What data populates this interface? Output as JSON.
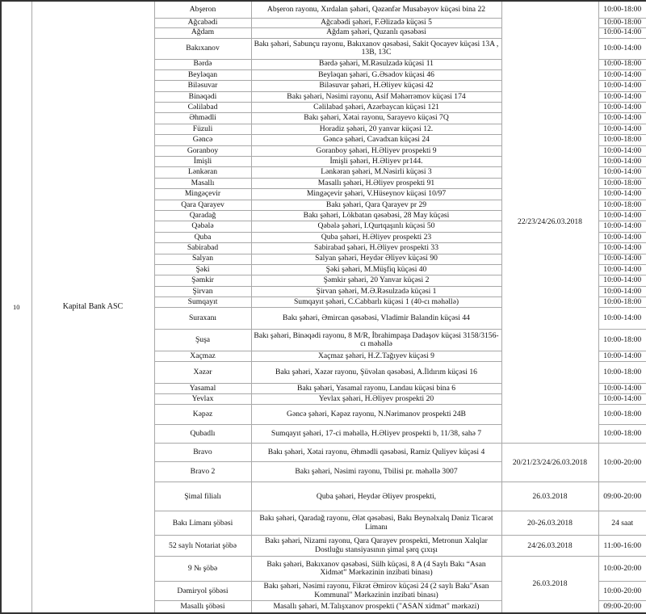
{
  "row_number": "10",
  "bank": "Kapital Bank ASC",
  "rows": [
    {
      "branch": "Abşeron",
      "address": "Abşeron rayonu, Xırdalan şəhəri, Qəzənfər Musabəyov küçəsi bina 22",
      "date_group": 0,
      "hours": "10:00-18:00"
    },
    {
      "branch": "Ağcabədi",
      "address": "Ağcabədi şəhəri, F.Əlizadə küçəsi 5",
      "date_group": 0,
      "hours": "10:00-18:00"
    },
    {
      "branch": "Ağdam",
      "address": "Ağdam şəhəri, Quzanlı qəsəbəsi",
      "date_group": 0,
      "hours": "10:00-14:00"
    },
    {
      "branch": "Bakıxanov",
      "address": "Bakı şəhəri,  Sabunçu rayonu, Bakıxanov qəsəbəsi, Sakit Qocayev küçəsi 13A , 13B, 13C",
      "date_group": 0,
      "hours": "10:00-14:00"
    },
    {
      "branch": "Bərdə",
      "address": "Bərdə şəhəri, M.Rəsulzadə küçəsi 11",
      "date_group": 0,
      "hours": "10:00-18:00"
    },
    {
      "branch": "Beyləqan",
      "address": "Beyləqan şəhəri, G.Əsədov küçəsi 46",
      "date_group": 0,
      "hours": "10:00-14:00"
    },
    {
      "branch": "Biləsuvar",
      "address": "Biləsuvar şəhəri, H.Əliyev küçəsi 42",
      "date_group": 0,
      "hours": "10:00-14:00"
    },
    {
      "branch": "Binəqədi",
      "address": "Bakı şəhəri, Nəsimi rayonu, Asif Məhərrəmov küçəsi 174",
      "date_group": 0,
      "hours": "10:00-14:00"
    },
    {
      "branch": "Cəlilabad",
      "address": "Cəlilabad şəhəri, Azərbaycan küçəsi 121",
      "date_group": 0,
      "hours": "10:00-14:00"
    },
    {
      "branch": "Əhmədli",
      "address": "Bakı şəhəri, Xətai rayonu, Sarayevo küçəsi 7Q",
      "date_group": 0,
      "hours": "10:00-14:00"
    },
    {
      "branch": "Füzuli",
      "address": "Horadiz şəhəri, 20 yanvar küçəsi 12.",
      "date_group": 0,
      "hours": "10:00-14:00"
    },
    {
      "branch": "Gəncə",
      "address": "Gəncə şəhəri,  Cavadxan küçəsi 24",
      "date_group": 0,
      "hours": "10:00-18:00"
    },
    {
      "branch": "Goranboy",
      "address": "Goranboy şəhəri, H.Əliyev prospekti 9",
      "date_group": 0,
      "hours": "10:00-14:00"
    },
    {
      "branch": "İmişli",
      "address": "İmişli şəhəri, H.Əliyev pr144.",
      "date_group": 0,
      "hours": "10:00-14:00"
    },
    {
      "branch": "Lənkəran",
      "address": "Lənkəran şəhəri, M.Nəsirli küçəsi 3",
      "date_group": 0,
      "hours": "10:00-14:00"
    },
    {
      "branch": "Masallı",
      "address": "Masallı şəhəri,  H.Əliyev prospekti 91",
      "date_group": 0,
      "hours": "10:00-18:00"
    },
    {
      "branch": "Mingəçevir",
      "address": "Mingəçevir şəhəri, V.Hüseynov küçəsi 10/97",
      "date_group": 0,
      "hours": "10:00-14:00"
    },
    {
      "branch": "Qara Qarayev",
      "address": "Bakı şəhəri, Qara Qarayev pr 29",
      "date_group": 0,
      "hours": "10:00-18:00"
    },
    {
      "branch": "Qaradağ",
      "address": "Bakı şəhəri, Lökbatan qəsəbəsi, 28 May küçəsi",
      "date_group": 0,
      "hours": "10:00-14:00"
    },
    {
      "branch": "Qəbələ",
      "address": "Qəbələ şəhəri, I.Qurtqaşınlı küçəsi 50",
      "date_group": 0,
      "hours": "10:00-14:00"
    },
    {
      "branch": "Quba",
      "address": "Quba şəhəri, H.Əliyev prospekti 23",
      "date_group": 0,
      "hours": "10:00-14:00"
    },
    {
      "branch": "Sabirabad",
      "address": "Sabirabad şəhəri, H.Əliyev prospekti 33",
      "date_group": 0,
      "hours": "10:00-14:00"
    },
    {
      "branch": "Salyan",
      "address": "Salyan şəhəri,  Heydər Əliyev küçəsi 90",
      "date_group": 0,
      "hours": "10:00-14:00"
    },
    {
      "branch": "Şəki",
      "address": "Şəki şəhəri, M.Müşfiq küçəsi 40",
      "date_group": 0,
      "hours": "10:00-14:00"
    },
    {
      "branch": "Şəmkir",
      "address": "Şəmkir şəhəri, 20 Yanvar küçəsi 2",
      "date_group": 0,
      "hours": "10:00-14:00"
    },
    {
      "branch": "Şirvan",
      "address": "Şirvan şəhəri,  M.Ə.Rəsulzadə küçəsi 1",
      "date_group": 0,
      "hours": "10:00-14:00"
    },
    {
      "branch": "Sumqayıt",
      "address": "Sumqayıt şəhəri,  C.Cabbarlı küçəsi 1 (40-cı məhəllə)",
      "date_group": 0,
      "hours": "10:00-18:00"
    },
    {
      "branch": "Suraxanı",
      "address": "Bakı şəhəri, Əmircan qəsəbəsi, Vladimir Balandin küçəsi 44",
      "date_group": 0,
      "hours": "10:00-14:00"
    },
    {
      "branch": "Şuşa",
      "address": "Bakı şəhəri, Binəqədi rayonu, 8 M/R, İbrahimpaşa Dadaşov küçəsi 3158/3156-cı məhəllə",
      "date_group": 0,
      "hours": "10:00-18:00"
    },
    {
      "branch": "Xaçmaz",
      "address": "Xaçmaz şəhəri,  H.Z.Tağıyev küçəsi 9",
      "date_group": 0,
      "hours": "10:00-14:00"
    },
    {
      "branch": "Xəzər",
      "address": "Bakı şəhəri, Xəzər rayonu, Şüvəlan qəsəbəsi, A.İldırım küçəsi 16",
      "date_group": 0,
      "hours": "10:00-18:00"
    },
    {
      "branch": "Yasamal",
      "address": "Bakı şəhəri, Yasamal rayonu, Landau küçəsi bina 6",
      "date_group": 0,
      "hours": "10:00-14:00"
    },
    {
      "branch": "Yevlax",
      "address": "Yevlax şəhəri, H.Əliyev prospekti 20",
      "date_group": 0,
      "hours": "10:00-14:00"
    },
    {
      "branch": "Kəpəz",
      "address": "Gəncə şəhəri, Kəpəz rayonu, N.Nərimanov prospekti 24B",
      "date_group": 0,
      "hours": "10:00-18:00"
    },
    {
      "branch": "Qubadlı",
      "address": "Sumqayıt şəhəri,  17-ci məhəllə, H.Əliyev prospekti b, 11/38, sahə 7",
      "date_group": 0,
      "hours": "10:00-18:00"
    },
    {
      "branch": "Bravo",
      "address": "Bakı şəhəri, Xətai rayonu, Əhmədli qəsəbəsi, Ramiz Quliyev küçəsi 4",
      "date_group": 1,
      "hours": "10:00-20:00",
      "hours_span": 2
    },
    {
      "branch": "Bravo 2",
      "address": "Bakı şəhəri, Nəsimi rayonu, Tbilisi pr. məhəllə 3007",
      "date_group": 1,
      "hours": null
    },
    {
      "branch": "Şimal filialı",
      "address": "Quba şəhəri, Heydər Əliyev prospekti,",
      "date_group": 2,
      "hours": "09:00-20:00"
    },
    {
      "branch": "Bakı Limanı şöbəsi",
      "address": "Bakı şəhəri, Qaradağ rayonu, Ələt qəsəbəsi, Bakı Beynəlxalq Dəniz Ticarət Limanı",
      "date_group": 3,
      "hours": "24 saat"
    },
    {
      "branch": "52 saylı Notariat şöbə",
      "address": "Bakı şəhəri, Nizami rayonu, Qara Qarayev prospekti, Metronun Xalqlar Dostluğu stansiyasının şimal şərq çıxışı",
      "date_group": 4,
      "hours": "11:00-16:00"
    },
    {
      "branch": "9 № şöbə",
      "address": "Bakı şəhəri, Bakıxanov qəsəbəsi, Sülh küçəsi, 8 A (4 Saylı Bakı “Asan Xidmət” Mərkəzinin inzibati  binası)",
      "date_group": 5,
      "hours": "10:00-20:00"
    },
    {
      "branch": "Dəmiryol şöbəsi",
      "address": "Bakı şəhəri, Nəsimi rayonu, Fikrət Əmirov küçəsi 24 (2 saylı Bakı\"Asan Kommunal\" Mərkəzinin inzibati binası)",
      "date_group": 5,
      "hours": "10:00-20:00"
    },
    {
      "branch": "Masallı şöbəsi",
      "address": "Masallı şəhəri, M.Talışxanov prospekti (\"ASAN xidmət\" mərkəzi)",
      "date_group": 5,
      "hours": "09:00-20:00"
    }
  ],
  "date_groups": [
    "22/23/24/26.03.2018",
    "20/21/23/24/26.03.2018",
    "26.03.2018",
    "20-26.03.2018",
    "24/26.03.2018",
    "26.03.2018"
  ]
}
